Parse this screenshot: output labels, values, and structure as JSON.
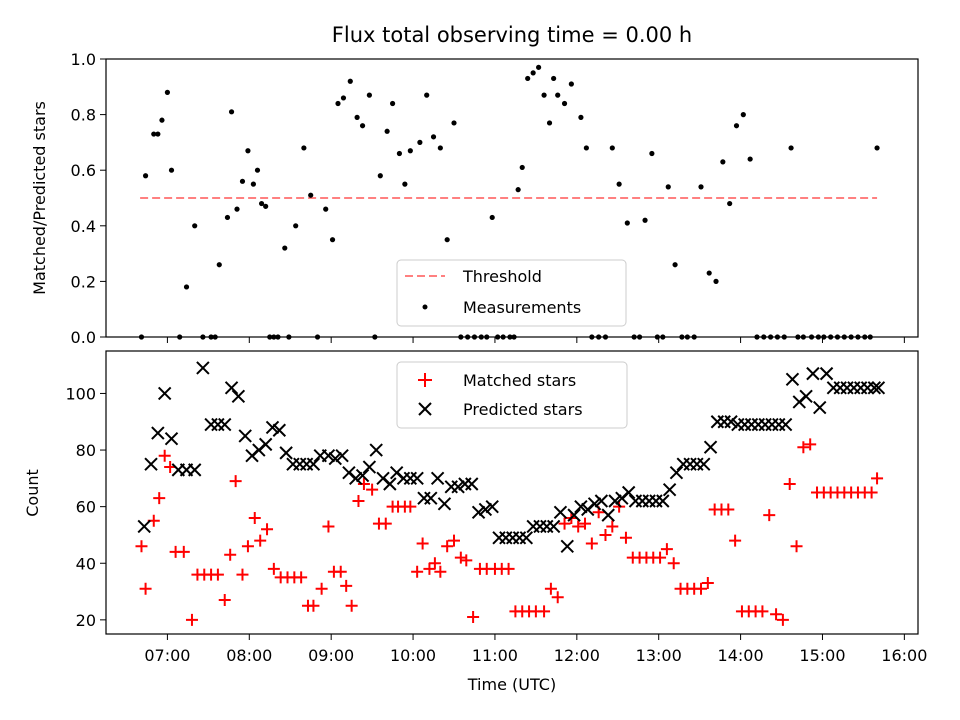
{
  "chart_data": [
    {
      "type": "scatter",
      "title": "Flux total observing time = 0.00 h",
      "ylabel": "Matched/Predicted stars",
      "xlim": [
        "06:15",
        "16:10"
      ],
      "ylim": [
        0,
        1.0
      ],
      "yticks": [
        "0.0",
        "0.2",
        "0.4",
        "0.6",
        "0.8",
        "1.0"
      ],
      "legend": "lower-center",
      "threshold": {
        "name": "Threshold",
        "y": 0.5,
        "x": [
          "06:40",
          "15:40"
        ],
        "color": "#ff8080"
      },
      "series": [
        {
          "name": "Measurements",
          "color": "#000000",
          "x": [
            "06:41",
            "06:44",
            "06:50",
            "06:53",
            "06:56",
            "07:00",
            "07:03",
            "07:09",
            "07:14",
            "07:20",
            "07:26",
            "07:32",
            "07:35",
            "07:38",
            "07:44",
            "07:47",
            "07:51",
            "07:55",
            "07:59",
            "08:03",
            "08:06",
            "08:09",
            "08:12",
            "08:15",
            "08:18",
            "08:21",
            "08:26",
            "08:29",
            "08:34",
            "08:40",
            "08:45",
            "08:50",
            "08:56",
            "09:01",
            "09:05",
            "09:09",
            "09:14",
            "09:19",
            "09:23",
            "09:28",
            "09:32",
            "09:36",
            "09:41",
            "09:45",
            "09:50",
            "09:54",
            "09:58",
            "10:05",
            "10:10",
            "10:15",
            "10:20",
            "10:25",
            "10:30",
            "10:35",
            "10:40",
            "10:45",
            "10:50",
            "10:54",
            "10:58",
            "11:02",
            "11:06",
            "11:11",
            "11:14",
            "11:17",
            "11:20",
            "11:24",
            "11:28",
            "11:32",
            "11:36",
            "11:40",
            "11:43",
            "11:46",
            "11:51",
            "11:56",
            "12:03",
            "12:07",
            "12:11",
            "12:16",
            "12:21",
            "12:26",
            "12:31",
            "12:37",
            "12:42",
            "12:46",
            "12:50",
            "12:55",
            "12:59",
            "13:03",
            "13:07",
            "13:12",
            "13:17",
            "13:21",
            "13:26",
            "13:31",
            "13:37",
            "13:42",
            "13:47",
            "13:52",
            "13:57",
            "14:02",
            "14:07",
            "14:12",
            "14:17",
            "14:22",
            "14:27",
            "14:32",
            "14:37",
            "14:42",
            "14:46",
            "14:52",
            "14:57",
            "15:01",
            "15:06",
            "15:11",
            "15:16",
            "15:21",
            "15:26",
            "15:31",
            "15:35",
            "15:40"
          ],
          "y": [
            0,
            0.58,
            0.73,
            0.73,
            0.78,
            0.88,
            0.6,
            0,
            0.18,
            0.4,
            0,
            0,
            0,
            0.26,
            0.43,
            0.81,
            0.46,
            0.56,
            0.67,
            0.55,
            0.6,
            0.48,
            0.47,
            0,
            0,
            0,
            0.32,
            0,
            0.4,
            0.68,
            0.51,
            0,
            0.46,
            0.35,
            0.84,
            0.86,
            0.92,
            0.79,
            0.76,
            0.87,
            0,
            0.58,
            0.74,
            0.84,
            0.66,
            0.55,
            0.67,
            0.7,
            0.87,
            0.72,
            0.68,
            0.35,
            0.77,
            0,
            0,
            0,
            0,
            0,
            0.43,
            0,
            0,
            0,
            0,
            0.53,
            0.61,
            0.93,
            0.95,
            0.97,
            0.87,
            0.77,
            0.93,
            0.87,
            0.84,
            0.91,
            0.79,
            0.68,
            0,
            0,
            0,
            0.68,
            0.55,
            0.41,
            0,
            0,
            0.42,
            0.66,
            0,
            0,
            0.54,
            0.26,
            0,
            0,
            0,
            0.54,
            0.23,
            0.2,
            0.63,
            0.48,
            0.76,
            0.8,
            0.64,
            0,
            0,
            0,
            0,
            0,
            0.68,
            0,
            0,
            0,
            0,
            0,
            0,
            0,
            0,
            0,
            0,
            0,
            0,
            0.68
          ]
        }
      ]
    },
    {
      "type": "scatter",
      "xlabel": "Time (UTC)",
      "ylabel": "Count",
      "xlim": [
        "06:15",
        "16:10"
      ],
      "ylim": [
        15,
        115
      ],
      "xticks": [
        "07:00",
        "08:00",
        "09:00",
        "10:00",
        "11:00",
        "12:00",
        "13:00",
        "14:00",
        "15:00",
        "16:00"
      ],
      "yticks": [
        "20",
        "40",
        "60",
        "80",
        "100"
      ],
      "legend": "upper-center",
      "series": [
        {
          "name": "Matched stars",
          "color": "#ff0000",
          "marker": "plus",
          "x": [
            "06:41",
            "06:44",
            "06:50",
            "06:54",
            "06:58",
            "07:02",
            "07:06",
            "07:12",
            "07:18",
            "07:22",
            "07:27",
            "07:32",
            "07:37",
            "07:42",
            "07:46",
            "07:50",
            "07:55",
            "07:59",
            "08:04",
            "08:08",
            "08:13",
            "08:18",
            "08:23",
            "08:28",
            "08:33",
            "08:38",
            "08:43",
            "08:47",
            "08:53",
            "08:58",
            "09:02",
            "09:07",
            "09:11",
            "09:15",
            "09:20",
            "09:24",
            "09:30",
            "09:35",
            "09:40",
            "09:45",
            "09:49",
            "09:54",
            "09:58",
            "10:03",
            "10:07",
            "10:12",
            "10:16",
            "10:20",
            "10:25",
            "10:30",
            "10:35",
            "10:39",
            "10:44",
            "10:49",
            "10:54",
            "11:00",
            "11:05",
            "11:10",
            "11:15",
            "11:20",
            "11:25",
            "11:30",
            "11:36",
            "11:41",
            "11:46",
            "11:51",
            "11:56",
            "12:01",
            "12:06",
            "12:11",
            "12:16",
            "12:21",
            "12:26",
            "12:31",
            "12:36",
            "12:41",
            "12:46",
            "12:51",
            "12:56",
            "13:01",
            "13:06",
            "13:11",
            "13:16",
            "13:21",
            "13:26",
            "13:31",
            "13:36",
            "13:41",
            "13:46",
            "13:51",
            "13:56",
            "14:01",
            "14:06",
            "14:11",
            "14:16",
            "14:21",
            "14:26",
            "14:31",
            "14:36",
            "14:41",
            "14:46",
            "14:51",
            "14:56",
            "15:01",
            "15:06",
            "15:11",
            "15:16",
            "15:21",
            "15:26",
            "15:31",
            "15:36",
            "15:40"
          ],
          "y": [
            46,
            31,
            55,
            63,
            78,
            74,
            44,
            44,
            20,
            36,
            36,
            36,
            36,
            27,
            43,
            69,
            36,
            46,
            56,
            48,
            52,
            38,
            35,
            35,
            35,
            35,
            25,
            25,
            31,
            53,
            37,
            37,
            32,
            25,
            62,
            68,
            66,
            54,
            54,
            60,
            60,
            60,
            60,
            37,
            47,
            38,
            40,
            37,
            46,
            48,
            42,
            41,
            21,
            38,
            38,
            38,
            38,
            38,
            23,
            23,
            23,
            23,
            23,
            31,
            28,
            54,
            56,
            53,
            54,
            47,
            58,
            50,
            53,
            60,
            49,
            42,
            42,
            42,
            42,
            42,
            45,
            40,
            31,
            31,
            31,
            31,
            33,
            59,
            59,
            59,
            48,
            23,
            23,
            23,
            23,
            57,
            22,
            20,
            68,
            46,
            81,
            82,
            65,
            65,
            65,
            65,
            65,
            65,
            65,
            65,
            65,
            70
          ]
        },
        {
          "name": "Predicted stars",
          "color": "#000000",
          "marker": "x",
          "x": [
            "06:43",
            "06:48",
            "06:53",
            "06:58",
            "07:03",
            "07:08",
            "07:14",
            "07:20",
            "07:26",
            "07:32",
            "07:37",
            "07:42",
            "07:47",
            "07:52",
            "07:57",
            "08:02",
            "08:07",
            "08:12",
            "08:17",
            "08:22",
            "08:27",
            "08:32",
            "08:37",
            "08:42",
            "08:47",
            "08:52",
            "08:58",
            "09:03",
            "09:08",
            "09:13",
            "09:18",
            "09:23",
            "09:28",
            "09:33",
            "09:38",
            "09:43",
            "09:48",
            "09:53",
            "09:58",
            "10:03",
            "10:08",
            "10:13",
            "10:18",
            "10:23",
            "10:28",
            "10:33",
            "10:38",
            "10:43",
            "10:48",
            "10:53",
            "10:58",
            "11:03",
            "11:08",
            "11:13",
            "11:18",
            "11:23",
            "11:28",
            "11:33",
            "11:38",
            "11:43",
            "11:48",
            "11:53",
            "11:58",
            "12:03",
            "12:08",
            "12:13",
            "12:18",
            "12:23",
            "12:28",
            "12:33",
            "12:38",
            "12:43",
            "12:48",
            "12:53",
            "12:58",
            "13:03",
            "13:08",
            "13:13",
            "13:18",
            "13:23",
            "13:28",
            "13:33",
            "13:38",
            "13:43",
            "13:48",
            "13:53",
            "13:58",
            "14:03",
            "14:08",
            "14:13",
            "14:18",
            "14:23",
            "14:28",
            "14:33",
            "14:38",
            "14:43",
            "14:48",
            "14:53",
            "14:58",
            "15:03",
            "15:08",
            "15:13",
            "15:18",
            "15:23",
            "15:28",
            "15:33",
            "15:38",
            "15:41"
          ],
          "y": [
            53,
            75,
            86,
            100,
            84,
            73,
            73,
            73,
            109,
            89,
            89,
            89,
            102,
            99,
            85,
            78,
            80,
            82,
            88,
            87,
            79,
            75,
            75,
            75,
            75,
            78,
            78,
            77,
            78,
            72,
            70,
            71,
            74,
            80,
            70,
            68,
            72,
            70,
            70,
            70,
            63,
            63,
            70,
            61,
            67,
            67,
            68,
            68,
            58,
            59,
            60,
            49,
            49,
            49,
            49,
            49,
            53,
            53,
            53,
            53,
            58,
            46,
            57,
            60,
            59,
            61,
            62,
            57,
            62,
            63,
            65,
            62,
            62,
            62,
            62,
            62,
            66,
            72,
            75,
            75,
            75,
            75,
            81,
            90,
            90,
            90,
            89,
            89,
            89,
            89,
            89,
            89,
            89,
            89,
            105,
            97,
            99,
            107,
            95,
            107,
            102,
            102,
            102,
            102,
            102,
            102,
            102,
            102
          ]
        }
      ]
    }
  ]
}
